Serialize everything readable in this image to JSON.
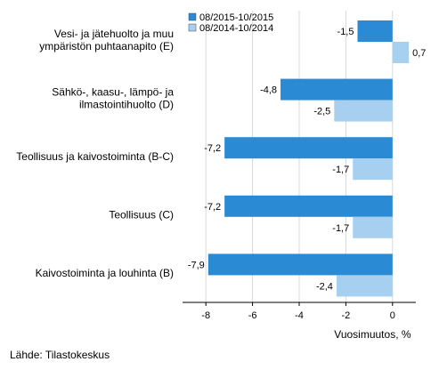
{
  "chart_data": {
    "type": "bar",
    "orientation": "horizontal",
    "categories": [
      [
        "Vesi- ja jätehuolto ja muu",
        "ympäristön puhtaanapito (E)"
      ],
      [
        "Sähkö-, kaasu-, lämpö- ja",
        "ilmastointihuolto (D)"
      ],
      [
        "Teollisuus ja kaivostoiminta (B-C)"
      ],
      [
        "Teollisuus (C)"
      ],
      [
        "Kaivostoiminta ja louhinta (B)"
      ]
    ],
    "series": [
      {
        "name": "08/2015-10/2015",
        "color": "#2a8ad4",
        "values": [
          -1.5,
          -4.8,
          -7.2,
          -7.2,
          -7.9
        ],
        "labels": [
          "-1,5",
          "-4,8",
          "-7,2",
          "-7,2",
          "-7,9"
        ]
      },
      {
        "name": "08/2014-10/2014",
        "color": "#a6cff0",
        "values": [
          0.7,
          -2.5,
          -1.7,
          -1.7,
          -2.4
        ],
        "labels": [
          "0,7",
          "-2,5",
          "-1,7",
          "-1,7",
          "-2,4"
        ]
      }
    ],
    "xlim": [
      -9,
      1
    ],
    "xticks": [
      -8,
      -6,
      -4,
      -2,
      0
    ],
    "xlabel": "Vuosimuutos, %",
    "ylabel": "",
    "grid": "vertical",
    "legend": "top-right"
  },
  "source": "Lähde: Tilastokeskus"
}
